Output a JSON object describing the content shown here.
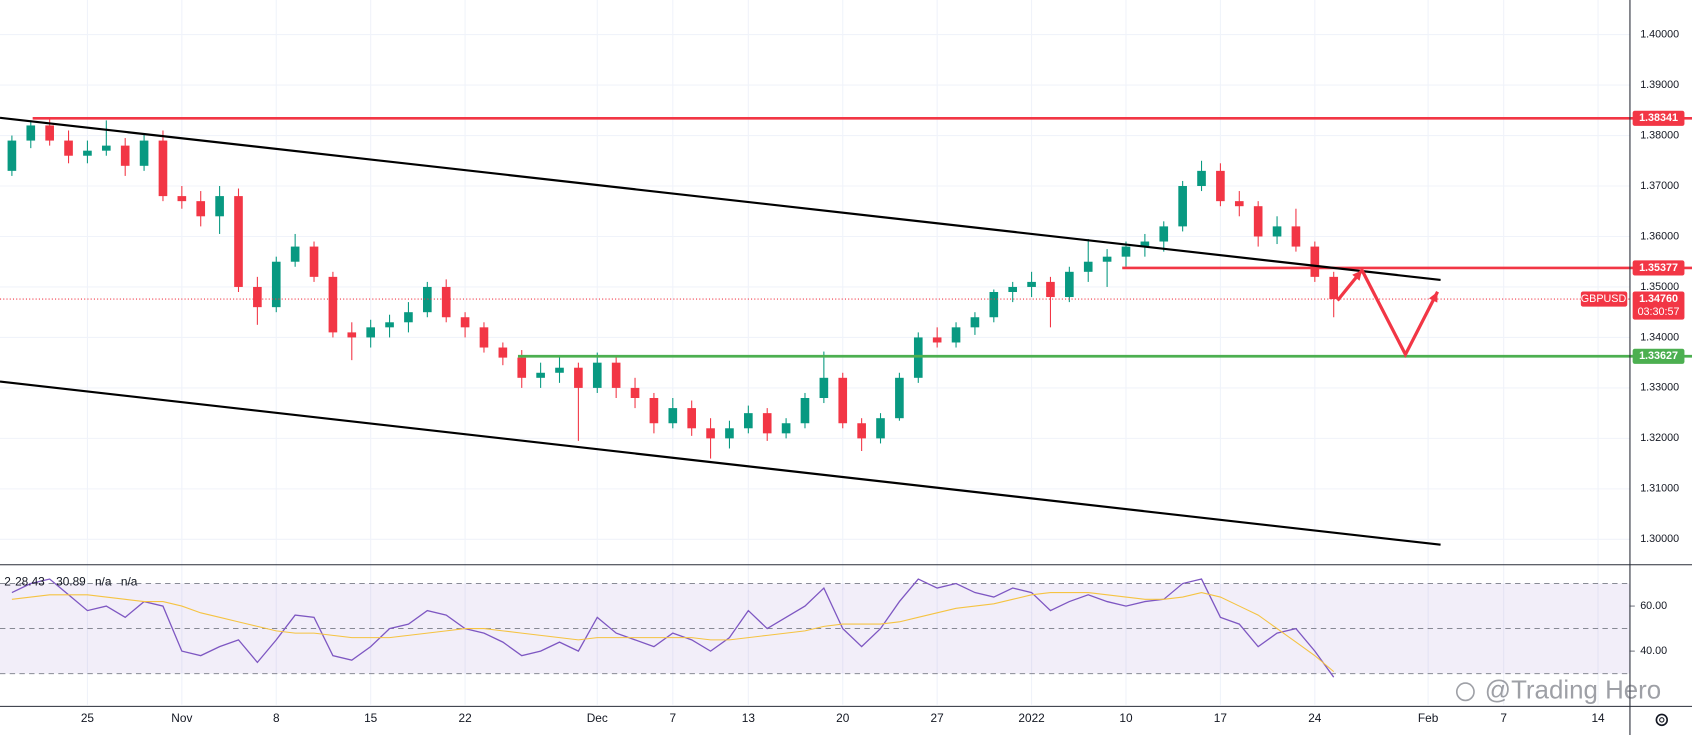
{
  "chart_data": [
    {
      "type": "candlestick",
      "symbol": "GBPUSD",
      "countdown": "03:30:57",
      "x": [
        0,
        1,
        2,
        3,
        4,
        5,
        6,
        7,
        8,
        9,
        10,
        11,
        12,
        13,
        14,
        15,
        16,
        17,
        18,
        19,
        20,
        21,
        22,
        23,
        24,
        25,
        26,
        27,
        28,
        29,
        30,
        31,
        32,
        33,
        34,
        35,
        36,
        37,
        38,
        39,
        40,
        41,
        42,
        43,
        44,
        45,
        46,
        47,
        48,
        49,
        50,
        51,
        52,
        53,
        54,
        55,
        56,
        57,
        58,
        59,
        60,
        61,
        62,
        63,
        64,
        65,
        66,
        67,
        68,
        69,
        70
      ],
      "open": [
        1.373,
        1.379,
        1.382,
        1.379,
        1.376,
        1.377,
        1.378,
        1.374,
        1.379,
        1.368,
        1.367,
        1.364,
        1.368,
        1.35,
        1.346,
        1.355,
        1.358,
        1.352,
        1.341,
        1.34,
        1.342,
        1.343,
        1.345,
        1.35,
        1.344,
        1.342,
        1.338,
        1.336,
        1.332,
        1.333,
        1.334,
        1.33,
        1.335,
        1.33,
        1.328,
        1.323,
        1.326,
        1.322,
        1.32,
        1.322,
        1.325,
        1.321,
        1.323,
        1.328,
        1.332,
        1.323,
        1.32,
        1.324,
        1.332,
        1.34,
        1.339,
        1.342,
        1.344,
        1.349,
        1.35,
        1.351,
        1.348,
        1.353,
        1.355,
        1.356,
        1.358,
        1.359,
        1.362,
        1.37,
        1.373,
        1.367,
        1.366,
        1.36,
        1.362,
        1.358,
        1.352
      ],
      "high": [
        1.38,
        1.383,
        1.3834,
        1.381,
        1.379,
        1.383,
        1.3795,
        1.3805,
        1.381,
        1.37,
        1.369,
        1.37,
        1.3695,
        1.352,
        1.356,
        1.3605,
        1.359,
        1.353,
        1.343,
        1.3435,
        1.3445,
        1.347,
        1.351,
        1.3515,
        1.345,
        1.343,
        1.339,
        1.3375,
        1.335,
        1.3365,
        1.335,
        1.337,
        1.3365,
        1.332,
        1.329,
        1.328,
        1.3275,
        1.324,
        1.3235,
        1.3265,
        1.326,
        1.324,
        1.329,
        1.3372,
        1.333,
        1.324,
        1.325,
        1.333,
        1.341,
        1.342,
        1.343,
        1.345,
        1.3495,
        1.351,
        1.353,
        1.352,
        1.354,
        1.3595,
        1.3575,
        1.359,
        1.3605,
        1.363,
        1.371,
        1.375,
        1.3745,
        1.369,
        1.367,
        1.364,
        1.3655,
        1.359,
        1.353
      ],
      "low": [
        1.372,
        1.3775,
        1.378,
        1.3745,
        1.3745,
        1.376,
        1.372,
        1.373,
        1.367,
        1.3655,
        1.362,
        1.3605,
        1.349,
        1.3425,
        1.345,
        1.354,
        1.351,
        1.34,
        1.3355,
        1.338,
        1.34,
        1.341,
        1.344,
        1.343,
        1.34,
        1.337,
        1.3345,
        1.33,
        1.33,
        1.331,
        1.3195,
        1.329,
        1.328,
        1.326,
        1.321,
        1.322,
        1.3205,
        1.316,
        1.318,
        1.321,
        1.3195,
        1.32,
        1.322,
        1.327,
        1.322,
        1.3175,
        1.319,
        1.3235,
        1.331,
        1.338,
        1.338,
        1.3405,
        1.343,
        1.347,
        1.348,
        1.342,
        1.347,
        1.351,
        1.35,
        1.354,
        1.356,
        1.357,
        1.361,
        1.369,
        1.366,
        1.364,
        1.358,
        1.3585,
        1.357,
        1.351,
        1.344
      ],
      "close": [
        1.379,
        1.382,
        1.379,
        1.376,
        1.377,
        1.378,
        1.374,
        1.379,
        1.368,
        1.367,
        1.364,
        1.368,
        1.35,
        1.346,
        1.355,
        1.358,
        1.352,
        1.341,
        1.34,
        1.342,
        1.343,
        1.345,
        1.35,
        1.344,
        1.342,
        1.338,
        1.336,
        1.332,
        1.333,
        1.334,
        1.33,
        1.335,
        1.33,
        1.328,
        1.323,
        1.326,
        1.322,
        1.32,
        1.322,
        1.325,
        1.321,
        1.323,
        1.328,
        1.332,
        1.323,
        1.32,
        1.324,
        1.332,
        1.34,
        1.339,
        1.342,
        1.344,
        1.349,
        1.35,
        1.351,
        1.348,
        1.353,
        1.355,
        1.356,
        1.358,
        1.359,
        1.362,
        1.37,
        1.373,
        1.367,
        1.366,
        1.36,
        1.362,
        1.358,
        1.352,
        1.3476
      ],
      "last_price_label": "1.34760",
      "up_color": "#089981",
      "down_color": "#f23645",
      "xlim": [
        -0.63,
        85.66
      ],
      "xticks": [
        {
          "value": 4,
          "label": "25"
        },
        {
          "value": 9,
          "label": "Nov"
        },
        {
          "value": 14,
          "label": "8"
        },
        {
          "value": 19,
          "label": "15"
        },
        {
          "value": 24,
          "label": "22"
        },
        {
          "value": 31,
          "label": "Dec"
        },
        {
          "value": 35,
          "label": "7"
        },
        {
          "value": 39,
          "label": "13"
        },
        {
          "value": 44,
          "label": "20"
        },
        {
          "value": 49,
          "label": "27"
        },
        {
          "value": 54,
          "label": "2022"
        },
        {
          "value": 59,
          "label": "10"
        },
        {
          "value": 64,
          "label": "17"
        },
        {
          "value": 69,
          "label": "24"
        },
        {
          "value": 75,
          "label": "Feb"
        },
        {
          "value": 79,
          "label": "7"
        },
        {
          "value": 84,
          "label": "14"
        }
      ],
      "ylim": [
        1.29507,
        1.40685
      ],
      "yticks": [
        {
          "value": 1.3,
          "label": "1.30000"
        },
        {
          "value": 1.31,
          "label": "1.31000"
        },
        {
          "value": 1.32,
          "label": "1.32000"
        },
        {
          "value": 1.33,
          "label": "1.33000"
        },
        {
          "value": 1.34,
          "label": "1.34000"
        },
        {
          "value": 1.35,
          "label": "1.35000"
        },
        {
          "value": 1.36,
          "label": "1.36000"
        },
        {
          "value": 1.37,
          "label": "1.37000"
        },
        {
          "value": 1.38,
          "label": "1.38000"
        },
        {
          "value": 1.39,
          "label": "1.39000"
        },
        {
          "value": 1.4,
          "label": "1.40000"
        }
      ],
      "grid": true,
      "levels": [
        {
          "value": 1.38341,
          "label": "1.38341",
          "color": "#f23645",
          "x_start": 1.1
        },
        {
          "value": 1.35377,
          "label": "1.35377",
          "color": "#f23645",
          "x_start": 58.8
        },
        {
          "value": 1.33627,
          "label": "1.33627",
          "color": "#4caf50",
          "x_start": 26.8
        }
      ],
      "trendlines": [
        {
          "x": [
            -0.63,
            75.66
          ],
          "y": [
            1.38351,
            1.35139
          ],
          "color": "#000000"
        },
        {
          "x": [
            -0.63,
            75.66
          ],
          "y": [
            1.33126,
            1.29893
          ],
          "color": "#000000"
        }
      ],
      "projection": {
        "x": [
          70.2,
          71.5,
          73.8,
          75.5
        ],
        "y": [
          1.34732,
          1.35332,
          1.33662,
          1.34904
        ],
        "color": "#f23645"
      }
    },
    {
      "type": "line",
      "header_prefix": "2",
      "header_extra": [
        "n/a",
        "n/a"
      ],
      "series": [
        {
          "color": "#7e57c2",
          "values": [
            66,
            70,
            72,
            65,
            58,
            60,
            55,
            62,
            60,
            40,
            38,
            42,
            45,
            35,
            45,
            56,
            55,
            38,
            36,
            42,
            50,
            52,
            58,
            56,
            50,
            48,
            44,
            38,
            40,
            44,
            40,
            55,
            48,
            45,
            42,
            48,
            45,
            40,
            46,
            58,
            50,
            55,
            60,
            68,
            50,
            42,
            50,
            62,
            72,
            68,
            70,
            66,
            64,
            68,
            66,
            58,
            62,
            65,
            62,
            60,
            62,
            63,
            70,
            72,
            55,
            52,
            42,
            48,
            50,
            40,
            28.43
          ]
        },
        {
          "color": "#f5c342",
          "values": [
            63,
            64,
            65,
            65,
            65,
            64,
            63,
            62,
            62,
            60,
            57,
            55,
            53,
            51,
            49,
            48,
            48,
            47,
            46,
            46,
            46,
            47,
            48,
            49,
            50,
            50,
            49,
            48,
            47,
            46,
            45,
            46,
            46,
            46,
            46,
            46,
            46,
            45,
            45,
            46,
            47,
            48,
            49,
            51,
            52,
            52,
            52,
            53,
            55,
            57,
            59,
            60,
            61,
            63,
            65,
            66,
            66,
            66,
            65,
            64,
            63,
            63,
            64,
            66,
            64,
            60,
            56,
            50,
            44,
            38,
            30.89
          ]
        }
      ],
      "ylim": [
        16.2,
        78.1
      ],
      "yticks": [
        {
          "value": 40,
          "label": "40.00"
        },
        {
          "value": 60,
          "label": "60.00"
        }
      ],
      "bands": [
        30,
        50,
        70
      ],
      "band_color": "#7e57c2"
    }
  ],
  "watermark": "@Trading Hero"
}
